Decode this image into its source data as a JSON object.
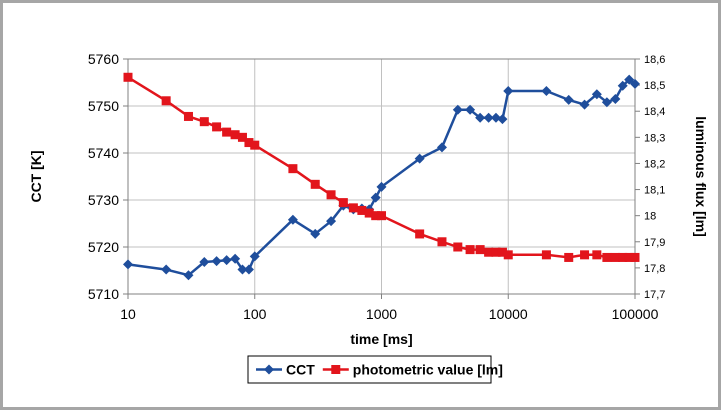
{
  "chart_data": {
    "type": "line",
    "title": "",
    "xlabel": "time [ms]",
    "ylabel_left": "CCT [K]",
    "ylabel_right": "luminous flux [lm]",
    "x_scale": "log",
    "xlim": [
      10,
      100000
    ],
    "ylim_left": [
      5710,
      5760
    ],
    "ylim_right": [
      17.7,
      18.6
    ],
    "grid": true,
    "legend_position": "bottom-center",
    "x_ticks": [
      "10",
      "100",
      "1000",
      "10000",
      "100000"
    ],
    "y_ticks_left": [
      "5710",
      "5720",
      "5730",
      "5740",
      "5750",
      "5760"
    ],
    "y_ticks_right": [
      "17,7",
      "17,8",
      "17,9",
      "18",
      "18,1",
      "18,2",
      "18,3",
      "18,4",
      "18,5",
      "18,6"
    ],
    "series": [
      {
        "name": "CCT",
        "axis": "left",
        "color": "#1f4e9c",
        "marker": "diamond",
        "x": [
          10,
          20,
          30,
          40,
          50,
          60,
          70,
          80,
          90,
          100,
          200,
          300,
          400,
          500,
          600,
          700,
          800,
          900,
          1000,
          2000,
          3000,
          4000,
          5000,
          6000,
          7000,
          8000,
          9000,
          10000,
          20000,
          30000,
          40000,
          50000,
          60000,
          70000,
          80000,
          90000,
          100000
        ],
        "y": [
          5716.3,
          5715.2,
          5714.0,
          5716.8,
          5717.0,
          5717.2,
          5717.5,
          5715.2,
          5715.2,
          5718.0,
          5725.8,
          5722.8,
          5725.5,
          5728.8,
          5728.0,
          5728.2,
          5728.0,
          5730.5,
          5732.8,
          5738.8,
          5741.2,
          5749.2,
          5749.2,
          5747.5,
          5747.5,
          5747.5,
          5747.2,
          5753.2,
          5753.2,
          5751.3,
          5750.3,
          5752.5,
          5750.8,
          5751.5,
          5754.3,
          5755.6,
          5754.7
        ]
      },
      {
        "name": "photometric value [lm]",
        "axis": "right",
        "color": "#e2151c",
        "marker": "square",
        "x": [
          10,
          20,
          30,
          40,
          50,
          60,
          70,
          80,
          90,
          100,
          200,
          300,
          400,
          500,
          600,
          700,
          800,
          900,
          1000,
          2000,
          3000,
          4000,
          5000,
          6000,
          7000,
          8000,
          9000,
          10000,
          20000,
          30000,
          40000,
          50000,
          60000,
          70000,
          80000,
          90000,
          100000
        ],
        "y": [
          18.53,
          18.44,
          18.38,
          18.36,
          18.34,
          18.32,
          18.31,
          18.3,
          18.28,
          18.27,
          18.18,
          18.12,
          18.08,
          18.05,
          18.03,
          18.02,
          18.01,
          18.0,
          18.0,
          17.93,
          17.9,
          17.88,
          17.87,
          17.87,
          17.86,
          17.86,
          17.86,
          17.85,
          17.85,
          17.84,
          17.85,
          17.85,
          17.84,
          17.84,
          17.84,
          17.84,
          17.84
        ]
      }
    ]
  }
}
